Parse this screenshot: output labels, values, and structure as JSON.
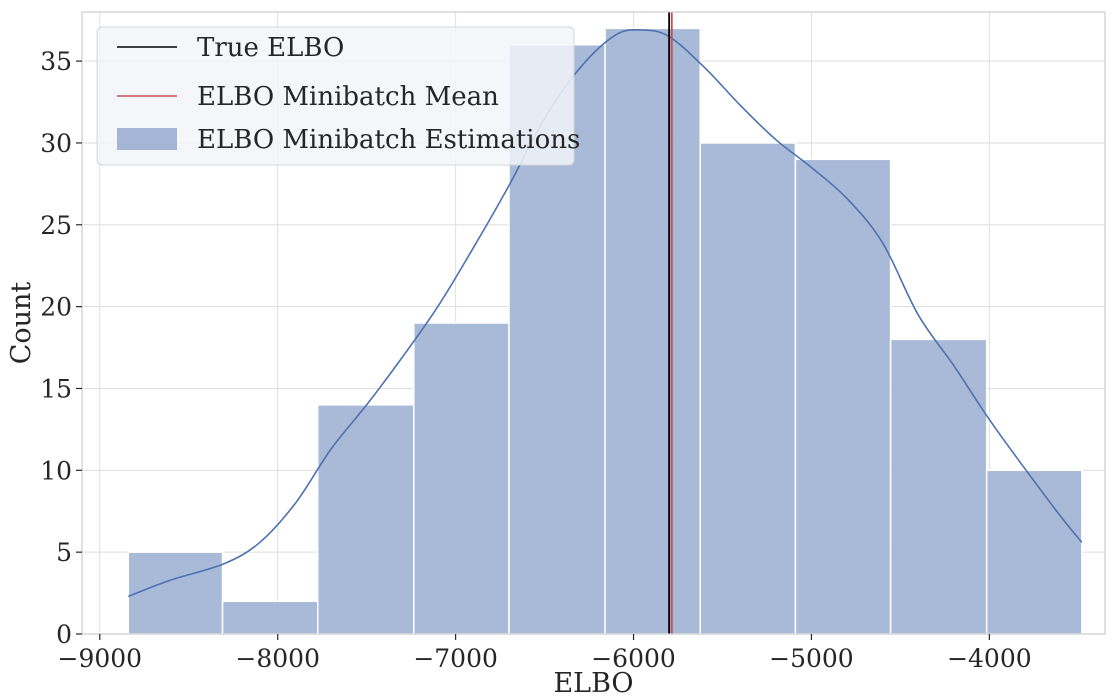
{
  "chart_data": {
    "type": "bar",
    "subtype": "histogram-with-kde",
    "xlabel": "ELBO",
    "ylabel": "Count",
    "xlim": [
      -9100,
      -3350
    ],
    "ylim": [
      0,
      38
    ],
    "xticks": [
      -9000,
      -8000,
      -7000,
      -6000,
      -5000,
      -4000
    ],
    "xtick_labels": [
      "−9000",
      "−8000",
      "−7000",
      "−6000",
      "−5000",
      "−4000"
    ],
    "yticks": [
      0,
      5,
      10,
      15,
      20,
      25,
      30,
      35
    ],
    "ytick_labels": [
      "0",
      "5",
      "10",
      "15",
      "20",
      "25",
      "30",
      "35"
    ],
    "grid": true,
    "legend_position": "top-left",
    "bins": [
      {
        "x0": -8840,
        "x1": -8310,
        "count": 5
      },
      {
        "x0": -8310,
        "x1": -7775,
        "count": 2
      },
      {
        "x0": -7775,
        "x1": -7235,
        "count": 14
      },
      {
        "x0": -7235,
        "x1": -6700,
        "count": 19
      },
      {
        "x0": -6700,
        "x1": -6160,
        "count": 36
      },
      {
        "x0": -6160,
        "x1": -5625,
        "count": 37
      },
      {
        "x0": -5625,
        "x1": -5090,
        "count": 30
      },
      {
        "x0": -5090,
        "x1": -4555,
        "count": 29
      },
      {
        "x0": -4555,
        "x1": -4015,
        "count": 18
      },
      {
        "x0": -4015,
        "x1": -3480,
        "count": 10
      }
    ],
    "kde": {
      "x": [
        -8840,
        -8600,
        -8300,
        -8100,
        -7900,
        -7700,
        -7500,
        -7300,
        -7100,
        -6900,
        -6700,
        -6500,
        -6300,
        -6100,
        -5950,
        -5800,
        -5600,
        -5400,
        -5200,
        -5000,
        -4800,
        -4600,
        -4400,
        -4200,
        -4000,
        -3800,
        -3600,
        -3480
      ],
      "y": [
        2.3,
        3.3,
        4.3,
        5.6,
        8.0,
        11.3,
        14.0,
        16.9,
        20.0,
        23.6,
        27.4,
        31.5,
        34.6,
        36.6,
        36.9,
        36.5,
        34.6,
        32.3,
        30.2,
        28.5,
        26.6,
        23.9,
        19.5,
        16.4,
        13.1,
        10.1,
        7.2,
        5.6
      ]
    },
    "vlines": [
      {
        "name": "True ELBO",
        "x": -5800,
        "color": "#000000"
      },
      {
        "name": "ELBO Minibatch Mean",
        "x": -5785,
        "color": "#c44e52"
      }
    ],
    "series": [
      {
        "name": "True ELBO",
        "kind": "line",
        "color": "#000000"
      },
      {
        "name": "ELBO Minibatch Mean",
        "kind": "line",
        "color": "#c44e52"
      },
      {
        "name": "ELBO Minibatch Estimations",
        "kind": "bar",
        "color": "#a4b5d6"
      }
    ],
    "colors": {
      "bar_fill": "#a4b5d6",
      "kde_line": "#4c72b0",
      "grid": "#dedede",
      "legend_bg": "#f2f4f9"
    }
  }
}
